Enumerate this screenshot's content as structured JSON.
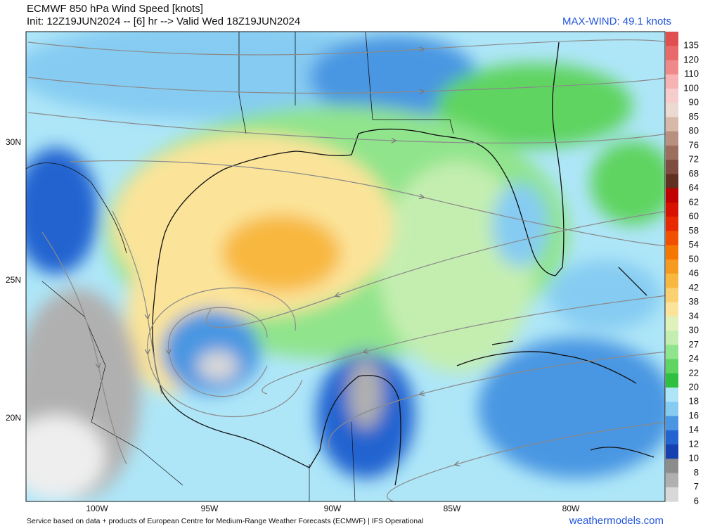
{
  "header": {
    "title": "ECMWF 850 hPa Wind Speed [knots]",
    "subtitle": "Init: 12Z19JUN2024 -- [6] hr --> Valid Wed 18Z19JUN2024",
    "max_wind": "MAX-WIND: 49.1 knots"
  },
  "colorbar": {
    "levels": [
      135,
      120,
      110,
      100,
      90,
      85,
      80,
      76,
      72,
      68,
      64,
      62,
      60,
      58,
      54,
      50,
      46,
      42,
      38,
      34,
      30,
      27,
      24,
      22,
      20,
      18,
      16,
      14,
      12,
      10,
      8,
      7,
      6
    ],
    "colors": [
      "#e05050",
      "#e86a6a",
      "#f08a8a",
      "#f7b3b3",
      "#f6cccc",
      "#eadad2",
      "#d8b8a8",
      "#b89080",
      "#9c6e5e",
      "#7e4c40",
      "#603020",
      "#c00000",
      "#d81000",
      "#e82800",
      "#f05000",
      "#f47800",
      "#f79a20",
      "#f8b840",
      "#fad070",
      "#fbe49a",
      "#dff2bb",
      "#c4eeb0",
      "#90e48c",
      "#5fd460",
      "#30c040",
      "#aee6f8",
      "#86ccf2",
      "#4a96e2",
      "#2464d0",
      "#1440b0",
      "#8c8c8c",
      "#b0b0b0",
      "#d8d8d8"
    ]
  },
  "lat_labels": [
    "30N",
    "25N",
    "20N"
  ],
  "lon_labels": [
    "100W",
    "95W",
    "90W",
    "85W",
    "80W"
  ],
  "footer": {
    "credit": "Service based on data + products of European Centre for Medium-Range Weather Forecasts (ECMWF) | IFS Operational",
    "site": "weathermodels.com"
  }
}
